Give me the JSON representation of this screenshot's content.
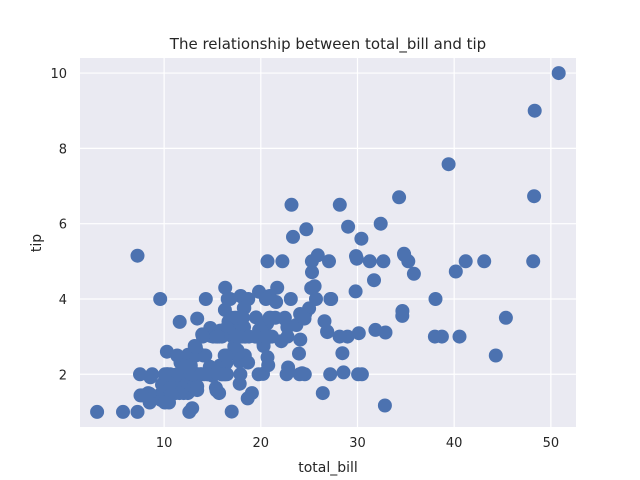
{
  "colors": {
    "plot_background": "#eaeaf2",
    "grid": "#ffffff",
    "marker": "#4c72b0",
    "text": "#262626"
  },
  "chart_data": {
    "type": "scatter",
    "title": "The relationship between total_bill and tip",
    "xlabel": "total_bill",
    "ylabel": "tip",
    "xlim": [
      1.3,
      52.6
    ],
    "ylim": [
      0.6,
      10.4
    ],
    "xticks": [
      10,
      20,
      30,
      40,
      50
    ],
    "yticks": [
      2,
      4,
      6,
      8,
      10
    ],
    "grid": true,
    "marker": "circle",
    "x": [
      16.99,
      10.34,
      21.01,
      23.68,
      24.59,
      25.29,
      8.77,
      26.88,
      15.04,
      14.78,
      10.27,
      35.26,
      15.42,
      18.43,
      14.83,
      21.58,
      10.33,
      16.29,
      16.97,
      20.65,
      17.92,
      20.29,
      15.77,
      39.42,
      19.82,
      17.81,
      13.37,
      12.69,
      21.7,
      19.65,
      9.55,
      18.35,
      15.06,
      20.69,
      17.78,
      24.06,
      16.31,
      16.93,
      18.69,
      31.27,
      16.04,
      17.46,
      13.94,
      9.68,
      30.4,
      18.29,
      22.23,
      32.4,
      28.55,
      18.04,
      12.54,
      10.29,
      34.81,
      9.94,
      25.56,
      19.49,
      38.01,
      26.41,
      11.24,
      48.27,
      20.29,
      13.81,
      11.02,
      18.29,
      17.59,
      20.08,
      16.45,
      3.07,
      20.23,
      15.01,
      12.02,
      17.07,
      26.86,
      25.28,
      14.73,
      10.51,
      17.92,
      27.2,
      22.76,
      17.29,
      19.44,
      16.66,
      10.07,
      32.68,
      15.98,
      34.83,
      13.03,
      18.28,
      24.71,
      21.16,
      28.97,
      22.49,
      5.75,
      16.32,
      22.75,
      40.17,
      27.28,
      12.03,
      21.01,
      12.46,
      11.35,
      15.38,
      44.3,
      22.42,
      20.92,
      15.36,
      20.49,
      25.21,
      18.24,
      14.31,
      14.0,
      7.25,
      38.07,
      23.95,
      25.71,
      17.31,
      29.93,
      10.65,
      12.43,
      24.08,
      11.69,
      13.42,
      14.26,
      15.95,
      12.48,
      29.8,
      8.52,
      14.52,
      11.38,
      22.82,
      19.08,
      20.27,
      11.17,
      12.26,
      18.26,
      8.51,
      10.33,
      14.15,
      16.0,
      13.16,
      17.47,
      34.3,
      41.19,
      27.05,
      16.43,
      8.35,
      18.64,
      11.87,
      9.78,
      7.51,
      14.07,
      13.13,
      17.26,
      24.55,
      19.77,
      29.85,
      48.17,
      25.0,
      13.39,
      16.49,
      21.5,
      12.66,
      16.21,
      13.81,
      17.51,
      24.52,
      20.76,
      31.71,
      10.59,
      10.63,
      50.81,
      15.81,
      7.25,
      31.85,
      16.82,
      32.9,
      17.89,
      14.48,
      9.6,
      34.63,
      34.65,
      23.33,
      45.35,
      23.17,
      40.55,
      20.69,
      20.9,
      30.46,
      18.15,
      23.1,
      15.69,
      19.81,
      28.44,
      15.48,
      16.58,
      7.56,
      10.34,
      43.11,
      13.0,
      13.51,
      18.71,
      12.74,
      13.0,
      16.4,
      20.53,
      16.47,
      26.59,
      38.73,
      24.27,
      12.76,
      30.06,
      25.89,
      48.33,
      13.27,
      28.17,
      12.9,
      28.15,
      11.59,
      7.74,
      30.14,
      12.16,
      13.42,
      8.58,
      15.98,
      13.42,
      16.27,
      10.09,
      20.45,
      13.28,
      22.12,
      24.01,
      15.69,
      11.61,
      10.77,
      15.53,
      10.07,
      12.6,
      32.83,
      35.83,
      29.03,
      27.18,
      22.67,
      17.82,
      18.78
    ],
    "y": [
      1.01,
      1.66,
      3.5,
      3.31,
      3.61,
      4.71,
      2.0,
      3.12,
      1.96,
      3.23,
      1.71,
      5.0,
      1.57,
      3.0,
      3.02,
      3.92,
      1.67,
      3.71,
      3.5,
      3.35,
      4.08,
      2.75,
      2.23,
      7.58,
      3.18,
      2.34,
      2.0,
      2.0,
      4.3,
      3.0,
      1.45,
      2.5,
      3.0,
      2.45,
      3.27,
      3.6,
      2.0,
      3.07,
      2.31,
      5.0,
      2.24,
      2.54,
      3.06,
      1.32,
      5.6,
      3.0,
      5.0,
      6.0,
      2.05,
      3.0,
      2.5,
      2.6,
      5.2,
      1.56,
      4.34,
      3.51,
      3.0,
      1.5,
      1.76,
      6.73,
      3.21,
      2.0,
      1.98,
      3.76,
      2.64,
      3.15,
      2.47,
      1.0,
      2.01,
      2.09,
      1.97,
      3.0,
      3.14,
      5.0,
      2.2,
      1.25,
      3.08,
      4.0,
      3.0,
      2.71,
      3.0,
      3.4,
      1.83,
      5.0,
      2.03,
      5.17,
      2.0,
      4.0,
      5.85,
      3.0,
      3.0,
      3.5,
      1.0,
      4.3,
      3.25,
      4.73,
      4.0,
      1.5,
      3.0,
      1.5,
      2.5,
      3.0,
      2.5,
      3.48,
      4.08,
      1.64,
      4.06,
      4.29,
      3.76,
      4.0,
      3.0,
      1.0,
      4.0,
      2.55,
      4.0,
      3.5,
      5.07,
      1.5,
      1.8,
      2.92,
      2.31,
      1.68,
      2.5,
      2.0,
      2.52,
      4.2,
      1.48,
      2.0,
      2.0,
      2.18,
      1.5,
      2.83,
      1.5,
      2.0,
      3.25,
      1.25,
      2.0,
      2.0,
      2.0,
      2.75,
      3.5,
      6.7,
      5.0,
      5.0,
      2.3,
      1.5,
      1.36,
      1.63,
      1.73,
      2.0,
      2.5,
      2.0,
      2.74,
      2.0,
      2.0,
      5.14,
      5.0,
      3.75,
      2.61,
      2.0,
      3.5,
      2.5,
      2.0,
      2.0,
      3.0,
      3.48,
      2.24,
      4.5,
      1.61,
      2.0,
      10.0,
      3.16,
      5.15,
      3.18,
      4.0,
      3.11,
      2.0,
      2.0,
      4.0,
      3.55,
      3.68,
      5.65,
      3.5,
      6.5,
      3.0,
      5.0,
      3.5,
      2.0,
      3.5,
      4.0,
      1.5,
      4.19,
      2.56,
      2.02,
      4.0,
      1.44,
      2.0,
      5.0,
      2.0,
      2.0,
      4.0,
      2.01,
      2.0,
      2.5,
      4.0,
      3.23,
      3.41,
      3.0,
      2.03,
      2.23,
      2.0,
      5.16,
      9.0,
      2.5,
      6.5,
      1.1,
      3.0,
      1.5,
      1.44,
      3.09,
      2.2,
      3.48,
      1.92,
      3.0,
      1.58,
      2.5,
      2.0,
      3.0,
      2.72,
      2.88,
      2.0,
      3.0,
      3.39,
      1.47,
      3.0,
      1.25,
      1.0,
      1.17,
      4.67,
      5.92,
      2.0,
      2.0,
      1.75,
      3.0
    ]
  }
}
